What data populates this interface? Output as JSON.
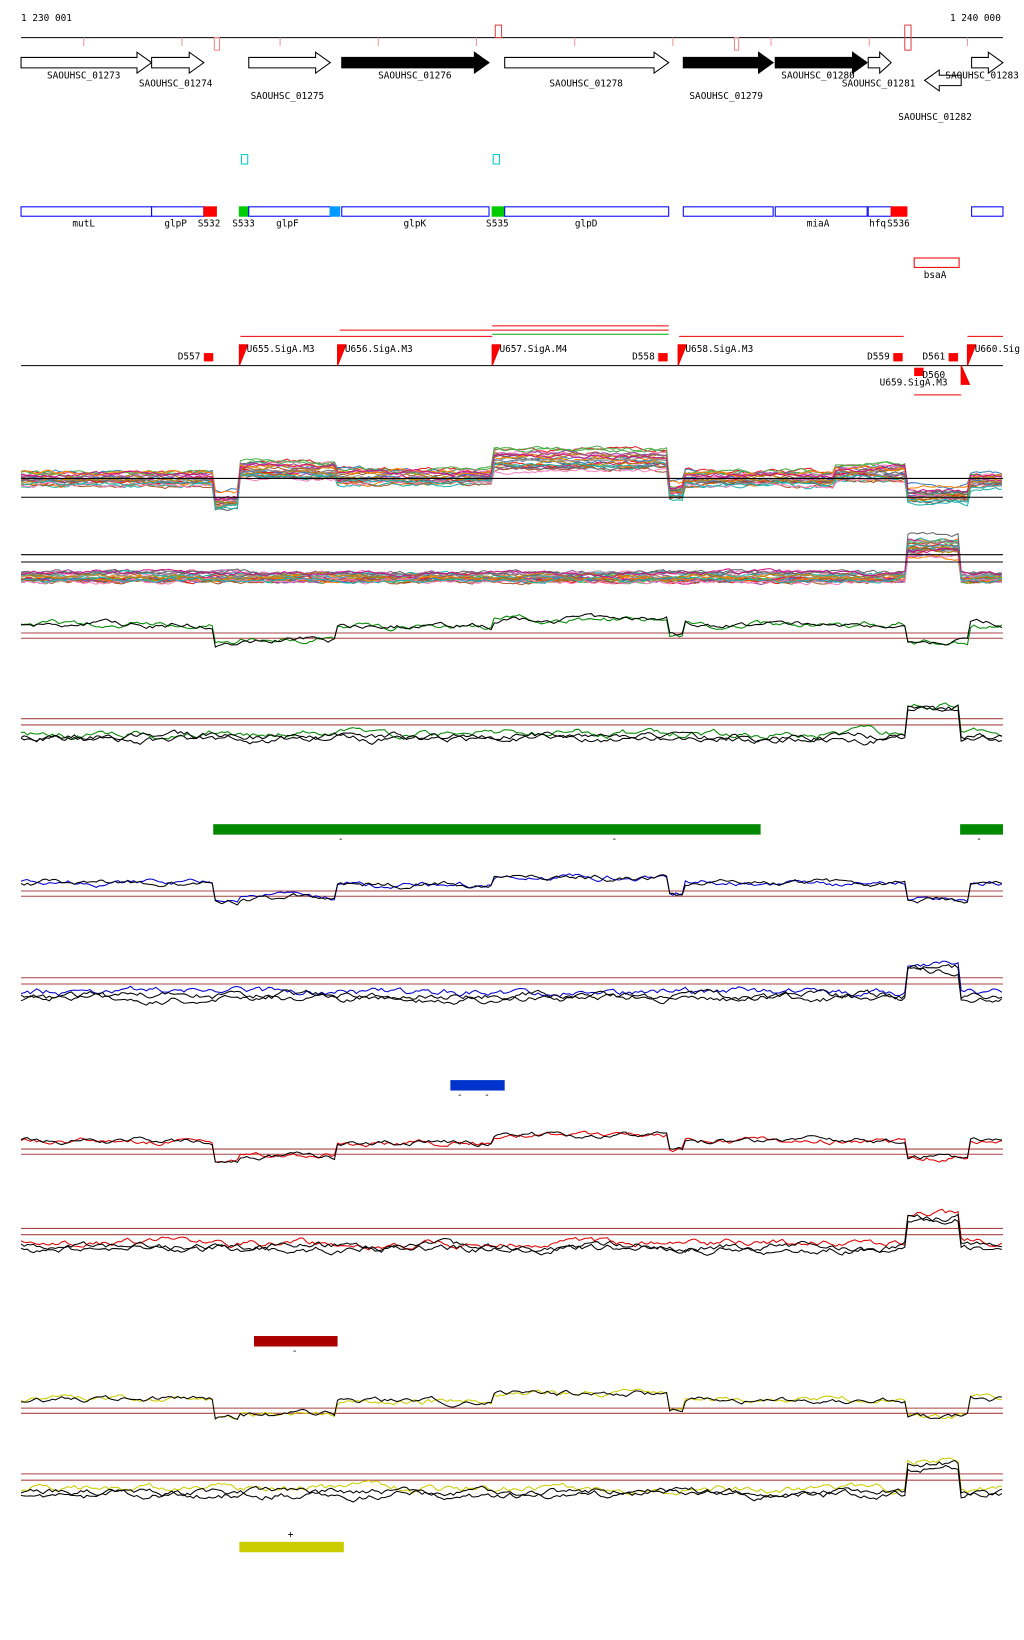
{
  "ruler": {
    "start": "1 230 001",
    "end": "1 240 000"
  },
  "genes": [
    "SAOUHSC_01273",
    "SAOUHSC_01274",
    "SAOUHSC_01275",
    "SAOUHSC_01276",
    "SAOUHSC_01278",
    "SAOUHSC_01279",
    "SAOUHSC_01280",
    "SAOUHSC_01281",
    "SAOUHSC_01282",
    "SAOUHSC_01283"
  ],
  "features": [
    "mutL",
    "glpP",
    "S532",
    "S533",
    "glpF",
    "glpK",
    "S535",
    "glpD",
    "miaA",
    "hfq",
    "S536",
    "bsaA"
  ],
  "promoters": [
    "D557",
    "U655.SigA.M3",
    "U656.SigA.M3",
    "U657.SigA.M4",
    "D558",
    "U658.SigA.M3",
    "D559",
    "D561",
    "U660.Sig",
    "D560",
    "U659.SigA.M3"
  ],
  "segments": {
    "green": [
      "-",
      "-",
      "-"
    ],
    "blue": [
      "-",
      "-"
    ],
    "red": [
      "-"
    ],
    "yellow": [
      "+"
    ]
  }
}
